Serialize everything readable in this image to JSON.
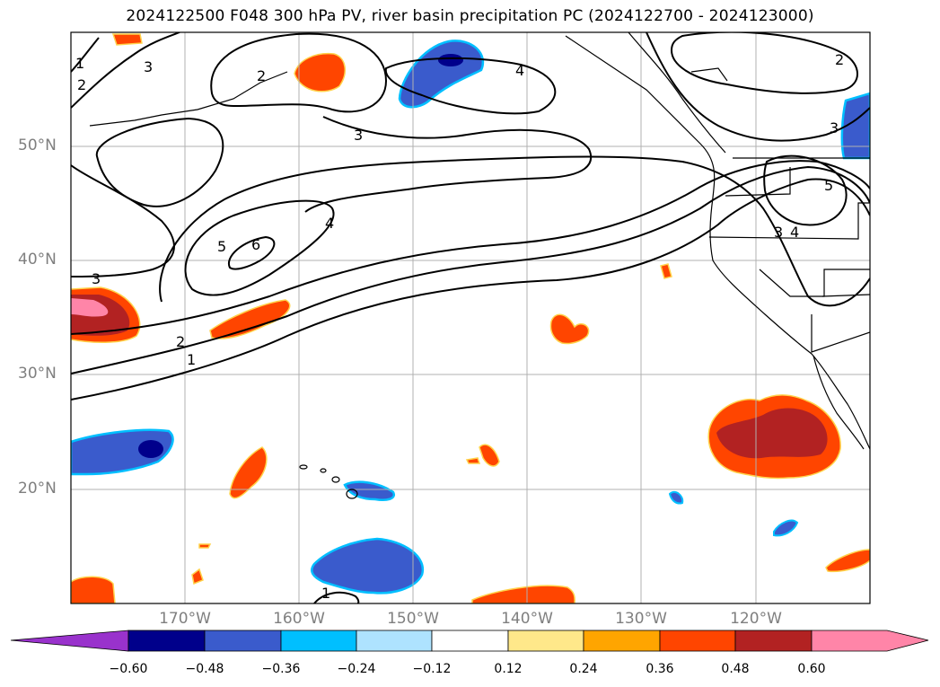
{
  "title": "2024122500 F048 300 hPa PV, river basin precipitation PC (2024122700 - 2024123000)",
  "map": {
    "lat_labels": [
      "50°N",
      "40°N",
      "30°N",
      "20°N"
    ],
    "lon_labels": [
      "170°W",
      "160°W",
      "150°W",
      "140°W",
      "130°W",
      "120°W"
    ],
    "pv_contour_labels": [
      "1",
      "2",
      "3",
      "4",
      "5",
      "6"
    ]
  },
  "colorbar": {
    "ticks": [
      "−0.60",
      "−0.48",
      "−0.36",
      "−0.24",
      "−0.12",
      "0.12",
      "0.24",
      "0.36",
      "0.48",
      "0.60"
    ],
    "colors": [
      "#9932cc",
      "#00008b",
      "#3a5bcc",
      "#00bfff",
      "#aee3ff",
      "#ffffff",
      "#ffe88a",
      "#ffa500",
      "#ff4500",
      "#b22222",
      "#ff85a8"
    ]
  },
  "colors": {
    "pos_0_24": "#ffe88a",
    "pos_0_36": "#ffa500",
    "pos_0_48": "#ff4500",
    "pos_0_60": "#b22222",
    "pos_max": "#ff85a8",
    "neg_0_24": "#00bfff",
    "neg_0_36": "#3a5bcc",
    "neg_0_48": "#00008b",
    "grid": "#b0b0b0"
  }
}
